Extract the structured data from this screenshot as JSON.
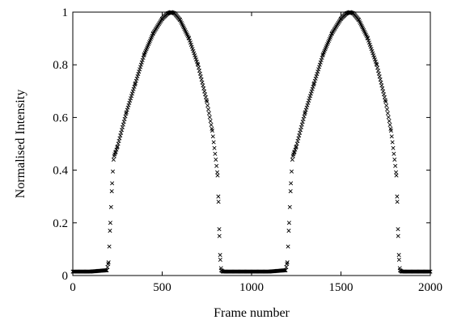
{
  "chart_data": {
    "type": "scatter",
    "marker": "x",
    "title": "",
    "xlabel": "Frame number",
    "ylabel": "Normalised Intensity",
    "xlim": [
      0,
      2000
    ],
    "ylim": [
      0,
      1
    ],
    "xticks": [
      "0",
      "500",
      "1000",
      "1500",
      "2000"
    ],
    "yticks": [
      "0",
      "0.2",
      "0.4",
      "0.6",
      "0.8",
      "1"
    ],
    "grid": false,
    "legend": "none",
    "marker_color": "#000000",
    "series": [
      {
        "x": [
          0,
          100,
          190,
          200,
          210,
          220,
          228,
          234,
          240,
          250,
          300,
          350,
          400,
          450,
          500,
          530,
          550,
          570,
          600,
          650,
          700,
          750,
          780,
          800,
          810,
          815,
          820,
          825,
          830,
          840,
          900,
          1000,
          1100,
          1190,
          1200,
          1210,
          1220,
          1228,
          1234,
          1240,
          1250,
          1300,
          1350,
          1400,
          1450,
          1500,
          1530,
          1550,
          1570,
          1600,
          1650,
          1700,
          1750,
          1780,
          1800,
          1810,
          1815,
          1820,
          1825,
          1830,
          1840,
          1900,
          2000
        ],
        "y": [
          0.015,
          0.015,
          0.02,
          0.05,
          0.2,
          0.35,
          0.44,
          0.46,
          0.47,
          0.49,
          0.62,
          0.73,
          0.84,
          0.92,
          0.975,
          0.995,
          1.0,
          0.995,
          0.97,
          0.9,
          0.8,
          0.66,
          0.55,
          0.44,
          0.38,
          0.28,
          0.15,
          0.06,
          0.02,
          0.015,
          0.015,
          0.015,
          0.015,
          0.02,
          0.05,
          0.2,
          0.35,
          0.44,
          0.46,
          0.47,
          0.49,
          0.62,
          0.73,
          0.84,
          0.92,
          0.975,
          0.995,
          1.0,
          0.995,
          0.97,
          0.9,
          0.8,
          0.66,
          0.55,
          0.44,
          0.38,
          0.28,
          0.15,
          0.06,
          0.02,
          0.015,
          0.015,
          0.015
        ]
      }
    ]
  }
}
